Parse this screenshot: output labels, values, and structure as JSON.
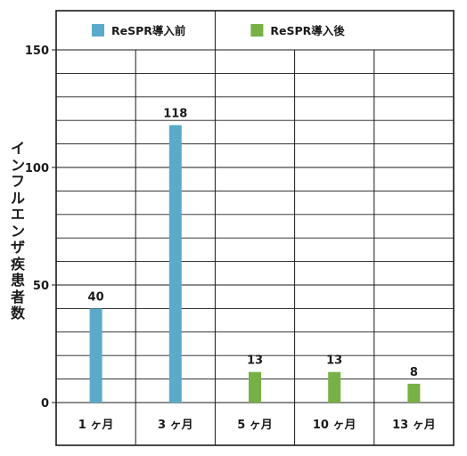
{
  "chart_data": {
    "type": "bar",
    "ylabel": "インフルエンザ疾患者数",
    "xlabel": "",
    "categories": [
      "1 ヶ月",
      "3 ヶ月",
      "5 ヶ月",
      "10 ヶ月",
      "13 ヶ月"
    ],
    "values": [
      40,
      118,
      13,
      13,
      8
    ],
    "value_labels": [
      "40",
      "118",
      "13",
      "13",
      "8"
    ],
    "ylim": [
      0,
      150
    ],
    "yticks": [
      0,
      50,
      100,
      150
    ],
    "grid": true,
    "legend_position": "top",
    "series": [
      {
        "name": "ReSPR導入前",
        "color": "#5aabca",
        "categories": [
          "1 ヶ月",
          "3 ヶ月"
        ]
      },
      {
        "name": "ReSPR導入後",
        "color": "#76b144",
        "categories": [
          "5 ヶ月",
          "10 ヶ月",
          "13 ヶ月"
        ]
      }
    ]
  }
}
